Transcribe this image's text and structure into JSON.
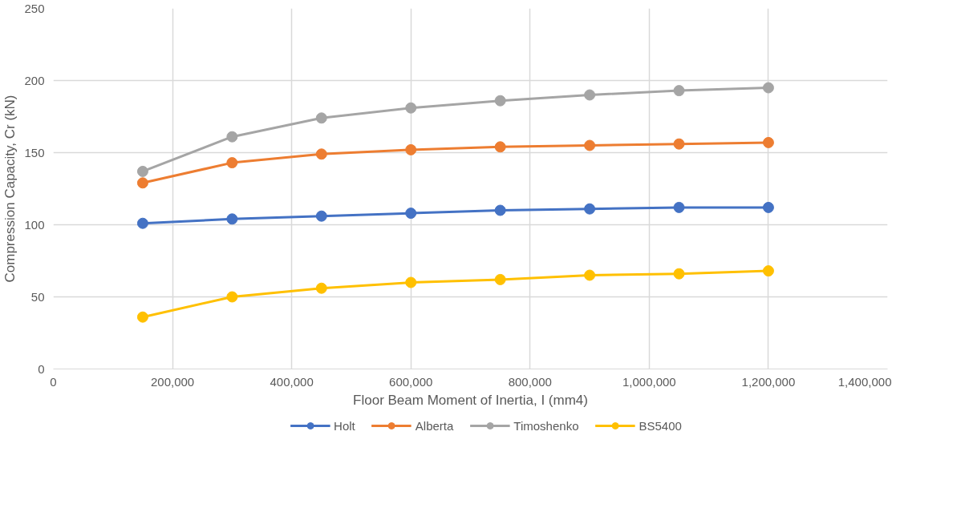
{
  "chart_data": {
    "type": "line",
    "xlabel": "Floor Beam Moment of Inertia, I (mm4)",
    "ylabel": "Compression Capacity, Cr (kN)",
    "x": [
      150000,
      300000,
      450000,
      600000,
      750000,
      900000,
      1050000,
      1200000
    ],
    "series": [
      {
        "name": "Holt",
        "color": "#4472c4",
        "values": [
          101,
          104,
          106,
          108,
          110,
          111,
          112,
          112
        ]
      },
      {
        "name": "Alberta",
        "color": "#ed7d31",
        "values": [
          129,
          143,
          149,
          152,
          154,
          155,
          156,
          157
        ]
      },
      {
        "name": "Timoshenko",
        "color": "#a5a5a5",
        "values": [
          137,
          161,
          174,
          181,
          186,
          190,
          193,
          195
        ]
      },
      {
        "name": "BS5400",
        "color": "#ffc000",
        "values": [
          36,
          50,
          56,
          60,
          62,
          65,
          66,
          68
        ]
      }
    ],
    "xlim": [
      0,
      1400000
    ],
    "xticks": [
      0,
      {
        "value": 200000,
        "label": "200,000"
      },
      {
        "value": 400000,
        "label": "400,000"
      },
      {
        "value": 600000,
        "label": "600,000"
      },
      {
        "value": 800000,
        "label": "800,000"
      },
      {
        "value": 1000000,
        "label": "1,000,000"
      },
      {
        "value": 1200000,
        "label": "1,200,000"
      },
      {
        "value": 1400000,
        "label": "1,400,000"
      }
    ],
    "ylim": [
      0,
      250
    ],
    "yticks": [
      0,
      50,
      100,
      150,
      200,
      250
    ],
    "grid": true,
    "legend": "bottom",
    "marker": "circle",
    "line_style": "solid"
  }
}
